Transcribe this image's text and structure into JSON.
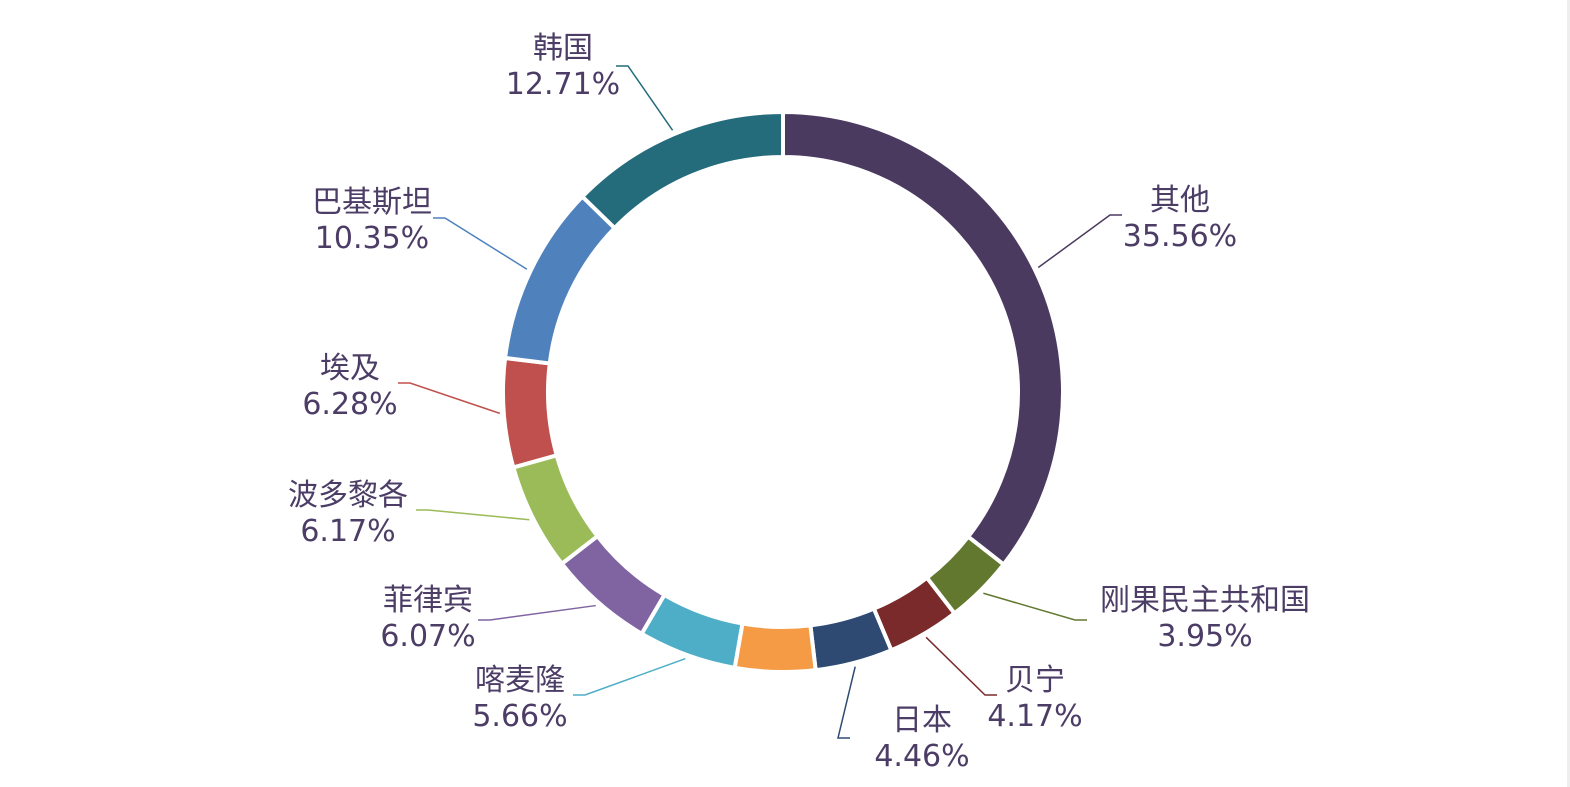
{
  "chart_data": {
    "type": "pie",
    "variant": "donut",
    "slices": [
      {
        "label": "其他",
        "value": 35.56,
        "value_label": "35.56%",
        "color": "#4b3a60"
      },
      {
        "label": "刚果民主共和国",
        "value": 3.95,
        "value_label": "3.95%",
        "color": "#62782f"
      },
      {
        "label": "贝宁",
        "value": 4.17,
        "value_label": "4.17%",
        "color": "#7a2a2a"
      },
      {
        "label": "日本",
        "value": 4.46,
        "value_label": "4.46%",
        "color": "#2e4a72"
      },
      {
        "label": "",
        "value": 4.62,
        "value_label": "",
        "color": "#f59a45"
      },
      {
        "label": "喀麦隆",
        "value": 5.66,
        "value_label": "5.66%",
        "color": "#4eaec7"
      },
      {
        "label": "菲律宾",
        "value": 6.07,
        "value_label": "6.07%",
        "color": "#8064a2"
      },
      {
        "label": "波多黎各",
        "value": 6.17,
        "value_label": "6.17%",
        "color": "#9bbb59"
      },
      {
        "label": "埃及",
        "value": 6.28,
        "value_label": "6.28%",
        "color": "#c0504d"
      },
      {
        "label": "巴基斯坦",
        "value": 10.35,
        "value_label": "10.35%",
        "color": "#4f81bd"
      },
      {
        "label": "韩国",
        "value": 12.71,
        "value_label": "12.71%",
        "color": "#246b7c"
      }
    ],
    "start_angle": "top",
    "direction": "clockwise",
    "legend": "none"
  }
}
